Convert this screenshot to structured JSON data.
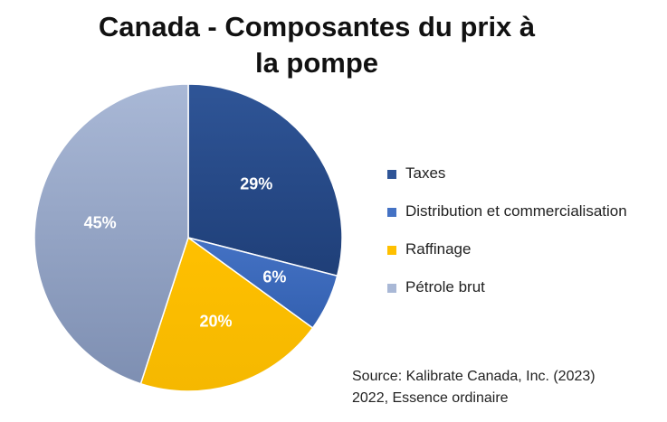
{
  "chart_data": {
    "type": "pie",
    "title_line1": "Canada - Composantes du prix à",
    "title_line2": "la pompe",
    "labels": [
      "Taxes",
      "Distribution et commercialisation",
      "Raffinage",
      "Pétrole brut"
    ],
    "values": [
      29,
      6,
      20,
      45
    ],
    "value_labels": [
      "29%",
      "6%",
      "20%",
      "45%"
    ],
    "colors": [
      "#2F5597",
      "#4472C4",
      "#FFC000",
      "#A9B8D6"
    ],
    "gradient_dark": [
      "#1F3F78",
      "#3360B0",
      "#F5B800",
      "#7E8FB2"
    ],
    "legend_position": "right",
    "start_angle_deg": 0,
    "direction": "clockwise"
  },
  "source": {
    "line1": "Source: Kalibrate Canada, Inc. (2023)",
    "line2": "2022, Essence ordinaire"
  }
}
